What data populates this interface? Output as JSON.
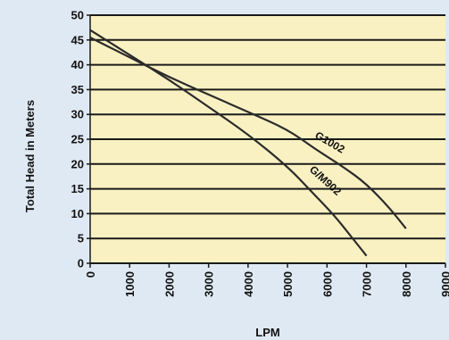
{
  "colors": {
    "page_background": "#dfe9f3",
    "plot_background": "#f9f1c2",
    "gridline": "#1a1a1a",
    "curve": "#2b2b2b"
  },
  "chart_data": {
    "type": "line",
    "title": "",
    "xlabel": "LPM",
    "ylabel": "Total Head in Meters",
    "xlim": [
      0,
      9000
    ],
    "ylim": [
      0,
      50
    ],
    "x_ticks": [
      "0",
      "1000",
      "2000",
      "3000",
      "4000",
      "5000",
      "6000",
      "7000",
      "8000",
      "9000"
    ],
    "y_ticks": [
      "0",
      "5",
      "10",
      "15",
      "20",
      "25",
      "30",
      "35",
      "40",
      "45",
      "50"
    ],
    "horizontal_grid": true,
    "vertical_grid": false,
    "series": [
      {
        "name": "G1002",
        "x": [
          0,
          1000,
          2000,
          3000,
          4000,
          5000,
          5700,
          6400,
          7000,
          7600,
          8000
        ],
        "y": [
          45.5,
          41.5,
          37.5,
          34,
          30.5,
          27,
          23,
          19.5,
          16,
          11,
          7
        ]
      },
      {
        "name": "G/M902",
        "x": [
          0,
          1000,
          2000,
          3000,
          4000,
          5000,
          5600,
          6200,
          6600,
          7000
        ],
        "y": [
          47,
          42,
          37,
          31.5,
          26,
          19.5,
          14.5,
          9.5,
          5.5,
          1.5
        ]
      }
    ]
  }
}
